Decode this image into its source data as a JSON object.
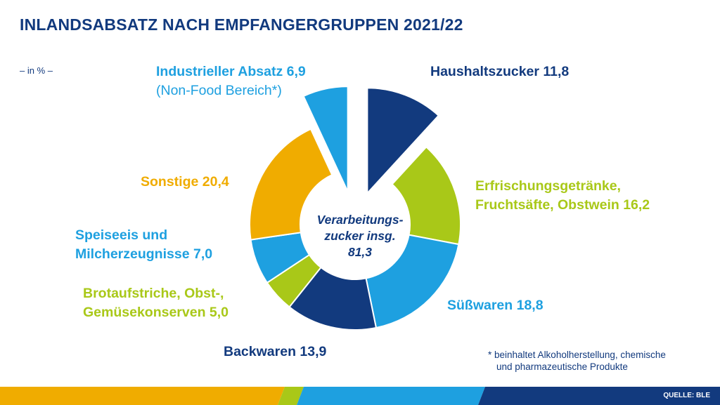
{
  "title": "INLANDSABSATZ NACH EMPFANGERGRUPPEN 2021/22",
  "unit_label": "– in % –",
  "colors": {
    "navy": "#123a7e",
    "lime": "#a9c818",
    "blue": "#1ea0e0",
    "orange": "#f0ac00"
  },
  "chart_data": {
    "type": "pie",
    "variant": "donut",
    "title": "INLANDSABSATZ NACH EMPFANGERGRUPPEN 2021/22",
    "unit": "%",
    "center_label": [
      "Verarbeitungs-",
      "zucker insg.",
      "81,3"
    ],
    "center_total": 81.3,
    "slices": [
      {
        "label": "Haushaltszucker 11,8",
        "value": 11.8,
        "color": "#123a7e",
        "exploded": true
      },
      {
        "label": "Erfrischungsgetränke, Fruchtsäfte, Obstwein 16,2",
        "value": 16.2,
        "color": "#a9c818",
        "exploded": false
      },
      {
        "label": "Süßwaren 18,8",
        "value": 18.8,
        "color": "#1ea0e0",
        "exploded": false
      },
      {
        "label": "Backwaren 13,9",
        "value": 13.9,
        "color": "#123a7e",
        "exploded": false
      },
      {
        "label": "Brotaufstriche, Obst-, Gemüsekonserven 5,0",
        "value": 5.0,
        "color": "#a9c818",
        "exploded": false
      },
      {
        "label": "Speiseeis und Milcherzeugnisse 7,0",
        "value": 7.0,
        "color": "#1ea0e0",
        "exploded": false
      },
      {
        "label": "Sonstige 20,4",
        "value": 20.4,
        "color": "#f0ac00",
        "exploded": false
      },
      {
        "label": "Industrieller Absatz 6,9 (Non-Food Bereich*)",
        "value": 6.9,
        "color": "#1ea0e0",
        "exploded": true
      }
    ]
  },
  "labels": {
    "haushalt": "Haushaltszucker 11,8",
    "erfrischung_1": "Erfrischungsgetränke,",
    "erfrischung_2": "Fruchtsäfte, Obstwein 16,2",
    "suesswaren": "Süßwaren 18,8",
    "backwaren": "Backwaren 13,9",
    "brot_1": "Brotaufstriche, Obst-,",
    "brot_2": "Gemüsekonserven 5,0",
    "speiseeis_1": "Speiseeis und",
    "speiseeis_2": "Milcherzeugnisse 7,0",
    "sonstige": "Sonstige 20,4",
    "industrie_1": "Industrieller Absatz 6,9",
    "industrie_2": "(Non-Food Bereich*)"
  },
  "footnote": {
    "line1": "* beinhaltet Alkoholherstellung, chemische",
    "line2": "und pharmazeutische Produkte"
  },
  "source": "QUELLE: BLE"
}
